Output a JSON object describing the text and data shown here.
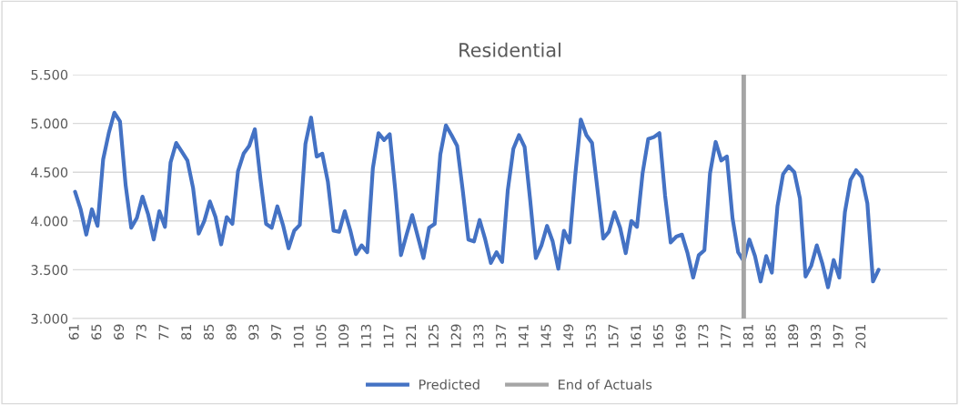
{
  "chart_data": {
    "type": "line",
    "title": "Residential",
    "x": [
      61,
      62,
      63,
      64,
      65,
      66,
      67,
      68,
      69,
      70,
      71,
      72,
      73,
      74,
      75,
      76,
      77,
      78,
      79,
      80,
      81,
      82,
      83,
      84,
      85,
      86,
      87,
      88,
      89,
      90,
      91,
      92,
      93,
      94,
      95,
      96,
      97,
      98,
      99,
      100,
      101,
      102,
      103,
      104,
      105,
      106,
      107,
      108,
      109,
      110,
      111,
      112,
      113,
      114,
      115,
      116,
      117,
      118,
      119,
      120,
      121,
      122,
      123,
      124,
      125,
      126,
      127,
      128,
      129,
      130,
      131,
      132,
      133,
      134,
      135,
      136,
      137,
      138,
      139,
      140,
      141,
      142,
      143,
      144,
      145,
      146,
      147,
      148,
      149,
      150,
      151,
      152,
      153,
      154,
      155,
      156,
      157,
      158,
      159,
      160,
      161,
      162,
      163,
      164,
      165,
      166,
      167,
      168,
      169,
      170,
      171,
      172,
      173,
      174,
      175,
      176,
      177,
      178,
      179,
      180,
      181,
      182,
      183,
      184,
      185,
      186,
      187,
      188,
      189,
      190,
      191,
      192,
      193,
      194,
      195,
      196,
      197,
      198,
      199,
      200,
      201,
      202,
      203,
      204
    ],
    "series": [
      {
        "name": "Predicted",
        "color": "#4472c4",
        "values": [
          4.3,
          4.12,
          3.86,
          4.12,
          3.95,
          4.63,
          4.9,
          5.11,
          5.02,
          4.37,
          3.93,
          4.03,
          4.25,
          4.07,
          3.81,
          4.1,
          3.94,
          4.6,
          4.8,
          4.71,
          4.62,
          4.34,
          3.87,
          4.0,
          4.2,
          4.04,
          3.76,
          4.04,
          3.97,
          4.51,
          4.69,
          4.77,
          4.94,
          4.43,
          3.97,
          3.93,
          4.15,
          3.96,
          3.72,
          3.9,
          3.96,
          4.79,
          5.06,
          4.66,
          4.69,
          4.4,
          3.9,
          3.89,
          4.1,
          3.9,
          3.66,
          3.75,
          3.68,
          4.54,
          4.9,
          4.83,
          4.89,
          4.31,
          3.65,
          3.86,
          4.06,
          3.84,
          3.62,
          3.93,
          3.97,
          4.68,
          4.98,
          4.88,
          4.77,
          4.31,
          3.81,
          3.79,
          4.01,
          3.81,
          3.57,
          3.68,
          3.58,
          4.31,
          4.74,
          4.88,
          4.76,
          4.21,
          3.62,
          3.75,
          3.95,
          3.79,
          3.51,
          3.9,
          3.78,
          4.46,
          5.04,
          4.88,
          4.8,
          4.31,
          3.82,
          3.89,
          4.09,
          3.93,
          3.67,
          4.0,
          3.94,
          4.49,
          4.84,
          4.86,
          4.9,
          4.26,
          3.78,
          3.84,
          3.86,
          3.67,
          3.42,
          3.65,
          3.7,
          4.49,
          4.81,
          4.62,
          4.66,
          4.03,
          3.68,
          3.59,
          3.81,
          3.64,
          3.38,
          3.64,
          3.47,
          4.15,
          4.48,
          4.56,
          4.5,
          4.23,
          3.43,
          3.54,
          3.75,
          3.56,
          3.32,
          3.6,
          3.42,
          4.09,
          4.42,
          4.52,
          4.45,
          4.18,
          3.38,
          3.5
        ]
      }
    ],
    "ref_lines": [
      {
        "axis": "x",
        "value": 180,
        "label": "End of Actuals",
        "color": "#a5a5a5"
      }
    ],
    "xlim": [
      60.6,
      216.2
    ],
    "xticks": [
      61,
      65,
      69,
      73,
      77,
      81,
      85,
      89,
      93,
      97,
      101,
      105,
      109,
      113,
      117,
      121,
      125,
      129,
      133,
      137,
      141,
      145,
      149,
      153,
      157,
      161,
      165,
      169,
      173,
      177,
      181,
      185,
      189,
      193,
      197,
      201
    ],
    "ylim": [
      3.0,
      5.5
    ],
    "yticks": [
      {
        "value": 3.0,
        "label": "3.000"
      },
      {
        "value": 3.5,
        "label": "3.500"
      },
      {
        "value": 4.0,
        "label": "4.000"
      },
      {
        "value": 4.5,
        "label": "4.500"
      },
      {
        "value": 5.0,
        "label": "5.000"
      },
      {
        "value": 5.5,
        "label": "5.500"
      }
    ],
    "grid": "y",
    "legend": "bottom",
    "line_style": "solid",
    "marker": "none"
  }
}
